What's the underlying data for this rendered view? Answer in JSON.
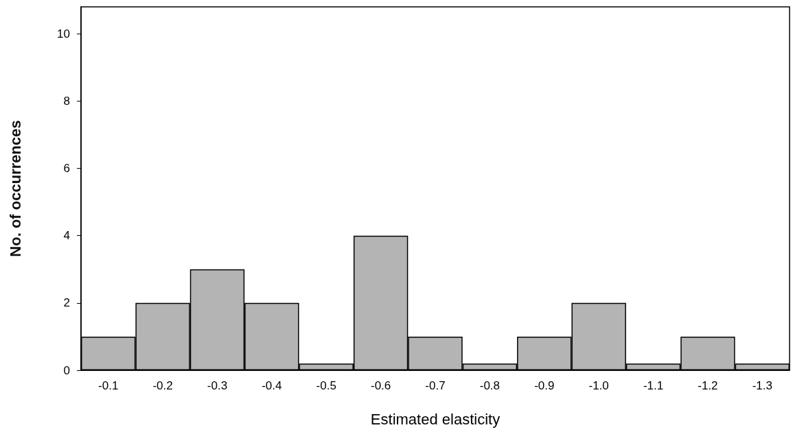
{
  "chart_data": {
    "type": "bar",
    "xlabel": "Estimated elasticity",
    "ylabel": "No. of occurrences",
    "categories": [
      "-0.1",
      "-0.2",
      "-0.3",
      "-0.4",
      "-0.5",
      "-0.6",
      "-0.7",
      "-0.8",
      "-0.9",
      "-1.0",
      "-1.1",
      "-1.2",
      "-1.3"
    ],
    "values": [
      1,
      2,
      3,
      2,
      0.2,
      4,
      1,
      0.2,
      1,
      2,
      0.2,
      1,
      0.2
    ],
    "color": "#b4b4b4",
    "ylim": [
      0,
      10.8
    ],
    "yticks": [
      0,
      2,
      4,
      6,
      8,
      10
    ],
    "grid": false
  }
}
